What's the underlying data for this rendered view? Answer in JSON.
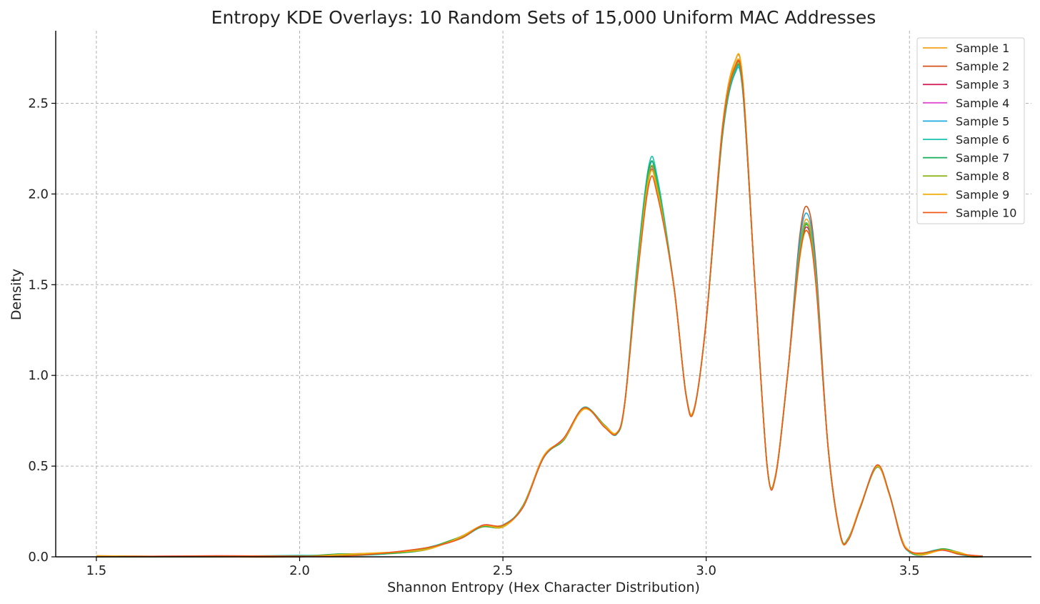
{
  "chart_data": {
    "type": "line",
    "title": "Entropy KDE Overlays: 10 Random Sets of 15,000 Uniform MAC Addresses",
    "xlabel": "Shannon Entropy (Hex Character Distribution)",
    "ylabel": "Density",
    "xlim": [
      1.4,
      3.8
    ],
    "ylim": [
      0,
      2.9
    ],
    "xticks": [
      1.5,
      2.0,
      2.5,
      3.0,
      3.5
    ],
    "xtick_labels": [
      "1.5",
      "2.0",
      "2.5",
      "3.0",
      "3.5"
    ],
    "yticks": [
      0.0,
      0.5,
      1.0,
      1.5,
      2.0,
      2.5
    ],
    "ytick_labels": [
      "0.0",
      "0.5",
      "1.0",
      "1.5",
      "2.0",
      "2.5"
    ],
    "grid": true,
    "legend_position": "top-right",
    "base_curve": {
      "x": [
        1.5,
        1.8,
        2.0,
        2.1,
        2.2,
        2.3,
        2.35,
        2.4,
        2.45,
        2.5,
        2.55,
        2.6,
        2.65,
        2.7,
        2.75,
        2.78,
        2.8,
        2.83,
        2.86,
        2.88,
        2.92,
        2.95,
        2.97,
        3.0,
        3.04,
        3.07,
        3.09,
        3.12,
        3.15,
        3.17,
        3.2,
        3.23,
        3.25,
        3.27,
        3.3,
        3.33,
        3.35,
        3.38,
        3.42,
        3.45,
        3.48,
        3.5,
        3.53,
        3.58,
        3.62,
        3.65,
        3.68
      ],
      "y": [
        0.0,
        0.0,
        0.003,
        0.01,
        0.018,
        0.04,
        0.07,
        0.11,
        0.17,
        0.17,
        0.28,
        0.55,
        0.65,
        0.82,
        0.72,
        0.68,
        0.85,
        1.55,
        2.1,
        2.02,
        1.5,
        0.9,
        0.81,
        1.3,
        2.35,
        2.7,
        2.6,
        1.5,
        0.5,
        0.44,
        1.0,
        1.7,
        1.85,
        1.55,
        0.6,
        0.12,
        0.1,
        0.28,
        0.5,
        0.35,
        0.1,
        0.03,
        0.015,
        0.04,
        0.02,
        0.005,
        0.0
      ]
    },
    "series": [
      {
        "name": "Sample 1",
        "color": "#f4a21c",
        "peak_scale": [
          1.0,
          1.0,
          1.0
        ]
      },
      {
        "name": "Sample 2",
        "color": "#d5531a",
        "peak_scale": [
          1.0,
          1.01,
          1.04
        ]
      },
      {
        "name": "Sample 3",
        "color": "#d6245e",
        "peak_scale": [
          1.005,
          0.995,
          0.98
        ]
      },
      {
        "name": "Sample 4",
        "color": "#e04bd2",
        "peak_scale": [
          1.0,
          0.99,
          0.99
        ]
      },
      {
        "name": "Sample 5",
        "color": "#1eabe0",
        "peak_scale": [
          1.02,
          0.985,
          1.02
        ]
      },
      {
        "name": "Sample 6",
        "color": "#17c3b0",
        "peak_scale": [
          1.035,
          0.99,
          0.99
        ]
      },
      {
        "name": "Sample 7",
        "color": "#14ad5a",
        "peak_scale": [
          1.02,
          0.99,
          0.985
        ]
      },
      {
        "name": "Sample 8",
        "color": "#8fb81f",
        "peak_scale": [
          1.01,
          0.995,
          0.99
        ]
      },
      {
        "name": "Sample 9",
        "color": "#f0b010",
        "peak_scale": [
          0.995,
          1.01,
          0.97
        ]
      },
      {
        "name": "Sample 10",
        "color": "#f05a18",
        "peak_scale": [
          0.985,
          1.0,
          0.97
        ]
      }
    ]
  }
}
